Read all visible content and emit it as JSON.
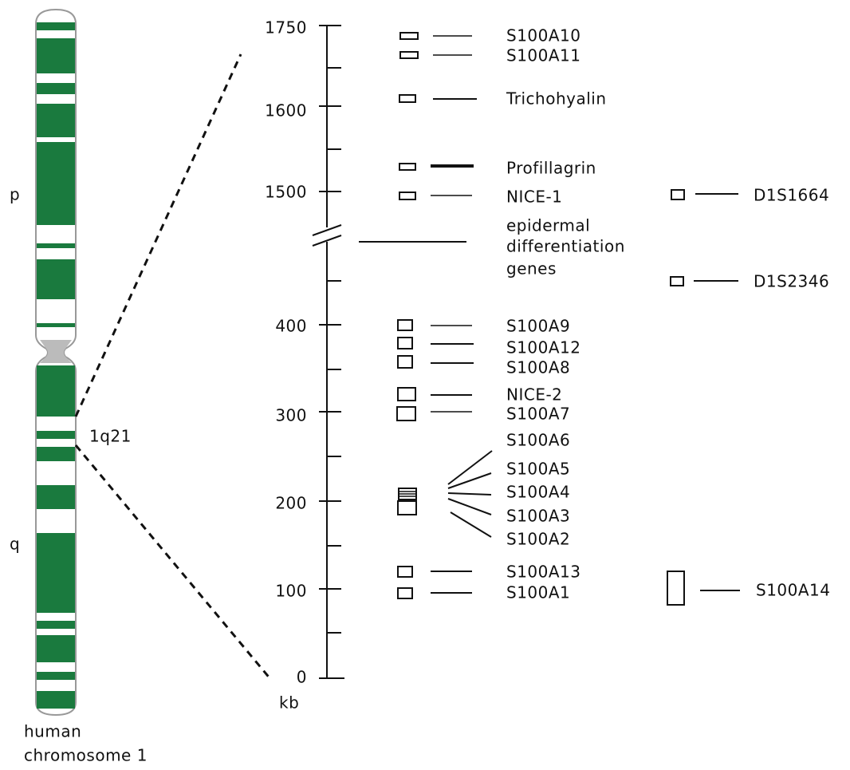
{
  "chromosome": {
    "p_arm": "p",
    "q_arm": "q",
    "band": "1q21",
    "caption": [
      "human",
      "chromosome 1"
    ]
  },
  "axis": {
    "ticks": [
      "1750",
      "1600",
      "1500",
      "400",
      "300",
      "200",
      "100",
      "0"
    ],
    "unit": "kb"
  },
  "cluster_label": [
    "epidermal",
    "differentiation",
    "genes"
  ],
  "genes": [
    "S100A10",
    "S100A11",
    "Trichohyalin",
    "Profillagrin",
    "NICE-1",
    "S100A9",
    "S100A12",
    "S100A8",
    "NICE-2",
    "S100A7",
    "S100A6",
    "S100A5",
    "S100A4",
    "S100A3",
    "S100A2",
    "S100A13",
    "S100A1"
  ],
  "markers": [
    "D1S1664",
    "D1S2346",
    "S100A14"
  ]
}
